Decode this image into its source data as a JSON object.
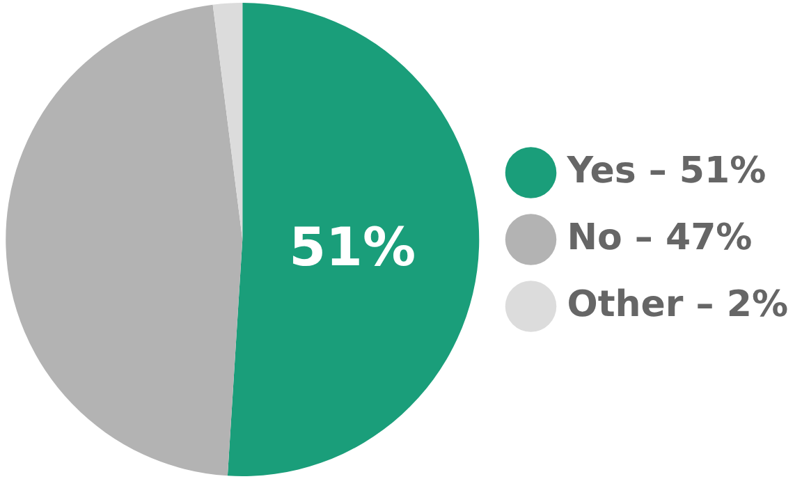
{
  "chart_data": {
    "type": "pie",
    "categories": [
      "Yes – 51%",
      "No – 47%",
      "Other – 2%"
    ],
    "values": [
      51,
      47,
      2
    ],
    "colors": [
      "#1a9e7a",
      "#b3b3b3",
      "#dcdcdc"
    ],
    "value_labels": [
      "51%",
      null,
      null
    ],
    "legend": "right"
  }
}
